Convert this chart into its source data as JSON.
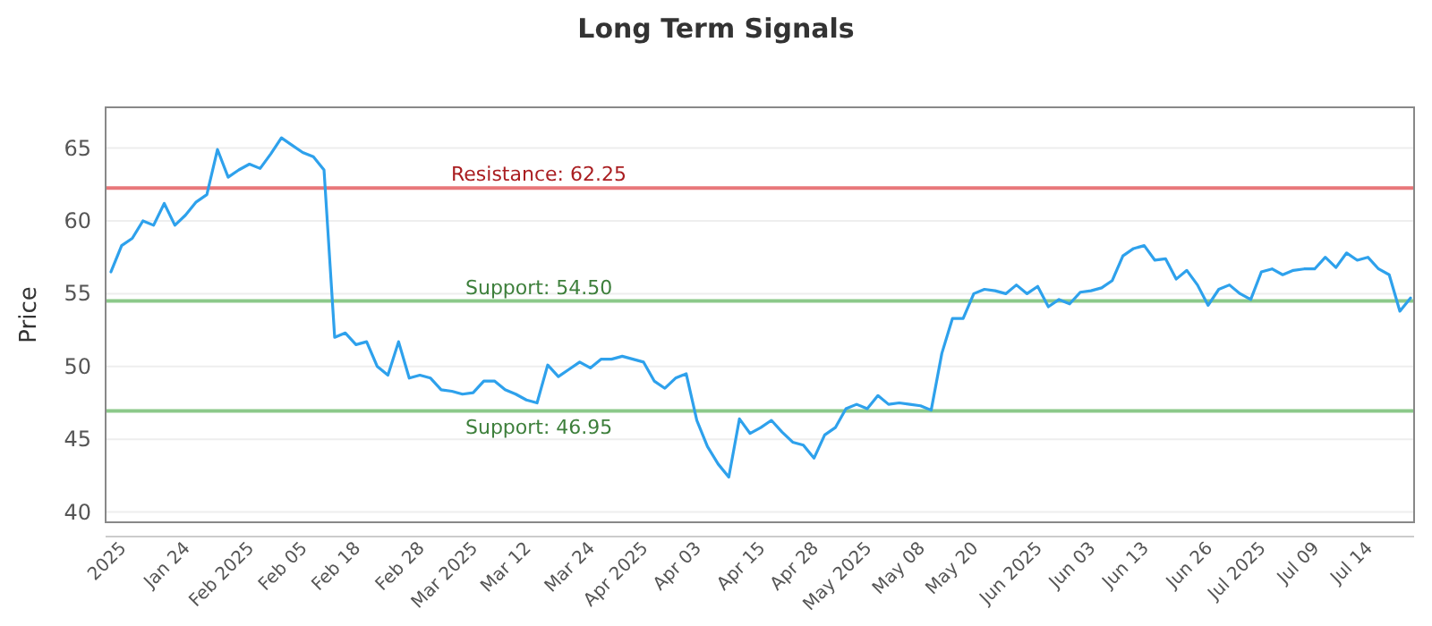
{
  "chart_data": {
    "type": "line",
    "title": "Long Term Signals",
    "ylabel": "Price",
    "categories": [
      null,
      "2025",
      null,
      null,
      null,
      null,
      null,
      "Jan 24",
      null,
      null,
      null,
      null,
      null,
      "Feb 2025",
      null,
      null,
      null,
      null,
      "Feb 05",
      null,
      null,
      null,
      null,
      "Feb 18",
      null,
      null,
      null,
      null,
      null,
      "Feb 28",
      null,
      null,
      null,
      null,
      "Mar 2025",
      null,
      null,
      null,
      null,
      "Mar 12",
      null,
      null,
      null,
      null,
      null,
      "Mar 24",
      null,
      null,
      null,
      null,
      "Apr 2025",
      null,
      null,
      null,
      null,
      "Apr 03",
      null,
      null,
      null,
      null,
      null,
      "Apr 15",
      null,
      null,
      null,
      null,
      "Apr 28",
      null,
      null,
      null,
      null,
      "May 2025",
      null,
      null,
      null,
      null,
      "May 08",
      null,
      null,
      null,
      null,
      "May 20",
      null,
      null,
      null,
      null,
      null,
      "Jun 2025",
      null,
      null,
      null,
      null,
      "Jun 03",
      null,
      null,
      null,
      null,
      "Jun 13",
      null,
      null,
      null,
      null,
      null,
      "Jun 26",
      null,
      null,
      null,
      null,
      "Jul 2025",
      null,
      null,
      null,
      null,
      "Jul 09",
      null,
      null,
      null,
      null,
      "Jul 14",
      null,
      null,
      null,
      null
    ],
    "series": [
      {
        "color": "#2ea1ec",
        "values": [
          56.5,
          58.3,
          58.8,
          60.0,
          59.7,
          61.2,
          59.7,
          60.4,
          61.3,
          61.8,
          64.9,
          63.0,
          63.5,
          63.9,
          63.6,
          64.6,
          65.7,
          65.2,
          64.7,
          64.4,
          63.5,
          52.0,
          52.3,
          51.5,
          51.7,
          50.0,
          49.4,
          51.7,
          49.2,
          49.4,
          49.2,
          48.4,
          48.3,
          48.1,
          48.2,
          49.0,
          49.0,
          48.4,
          48.1,
          47.7,
          47.5,
          50.1,
          49.3,
          49.8,
          50.3,
          49.9,
          50.5,
          50.5,
          50.7,
          50.5,
          50.3,
          49.0,
          48.5,
          49.2,
          49.5,
          46.3,
          44.5,
          43.3,
          42.4,
          46.4,
          45.4,
          45.8,
          46.3,
          45.5,
          44.8,
          44.6,
          43.7,
          45.3,
          45.8,
          47.1,
          47.4,
          47.1,
          48.0,
          47.4,
          47.5,
          47.4,
          47.3,
          47.0,
          50.9,
          53.3,
          53.3,
          55.0,
          55.3,
          55.2,
          55.0,
          55.6,
          55.0,
          55.5,
          54.1,
          54.6,
          54.3,
          55.1,
          55.2,
          55.4,
          55.9,
          57.6,
          58.1,
          58.3,
          57.3,
          57.4,
          56.0,
          56.6,
          55.6,
          54.2,
          55.3,
          55.6,
          55.0,
          54.6,
          56.5,
          56.7,
          56.3,
          56.6,
          56.7,
          56.7,
          57.5,
          56.8,
          57.8,
          57.3,
          57.5,
          56.7,
          56.3,
          53.8,
          54.7
        ]
      }
    ],
    "ylim": [
      39.3,
      67.8
    ],
    "yticks": [
      40,
      45,
      50,
      55,
      60,
      65
    ],
    "grid": "y",
    "marker": "none",
    "line_style": "solid",
    "ref_lines": [
      {
        "axis": "y",
        "value": 62.25,
        "label": "Resistance: 62.25",
        "color": "#e8777a"
      },
      {
        "axis": "y",
        "value": 54.5,
        "label": "Support: 54.50",
        "color": "#8cc98a"
      },
      {
        "axis": "y",
        "value": 46.95,
        "label": "Support: 46.95",
        "color": "#8cc98a"
      }
    ]
  }
}
